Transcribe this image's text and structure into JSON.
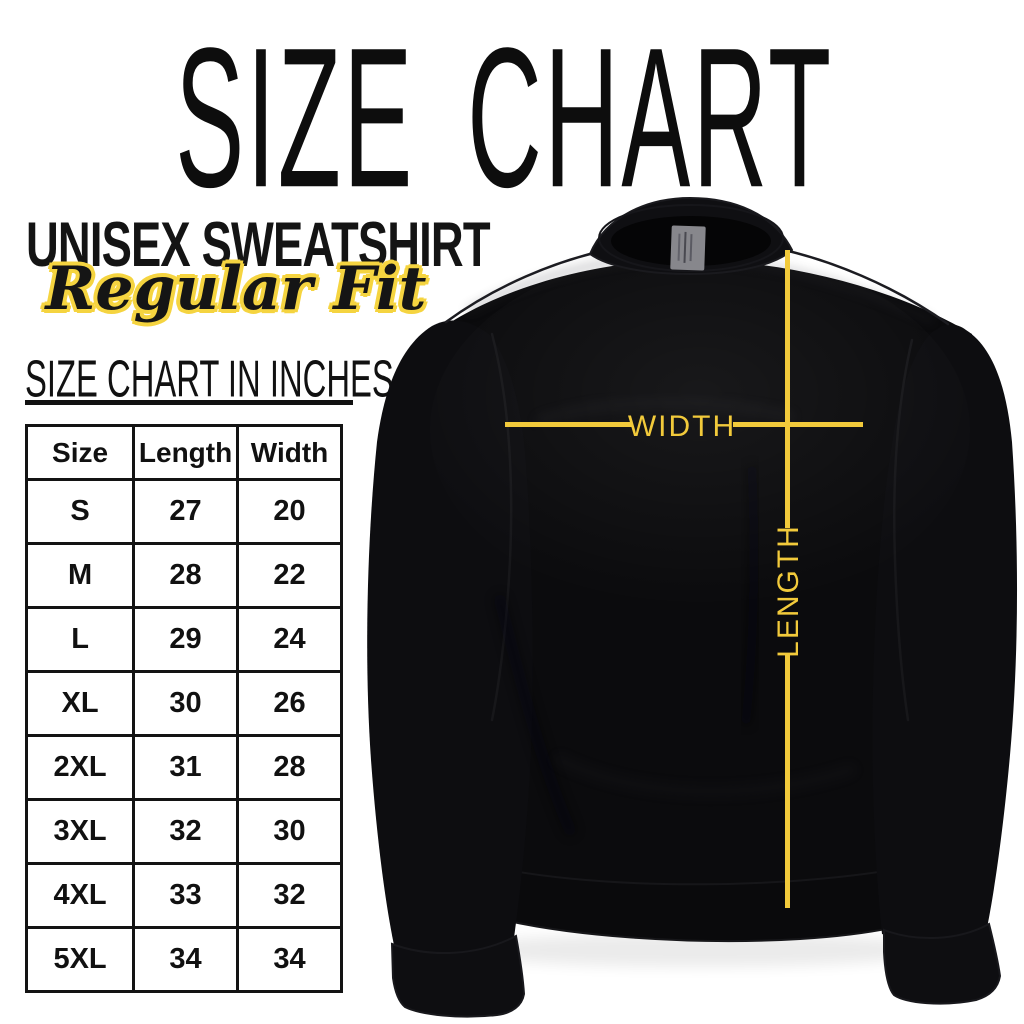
{
  "title": "SIZE CHART",
  "product": {
    "name": "UNISEX SWEATSHIRT",
    "fit": "Regular Fit"
  },
  "table_section": {
    "heading": "SIZE CHART IN INCHES",
    "columns": [
      "Size",
      "Length",
      "Width"
    ],
    "rows": [
      [
        "S",
        "27",
        "20"
      ],
      [
        "M",
        "28",
        "22"
      ],
      [
        "L",
        "29",
        "24"
      ],
      [
        "XL",
        "30",
        "26"
      ],
      [
        "2XL",
        "31",
        "28"
      ],
      [
        "3XL",
        "32",
        "30"
      ],
      [
        "4XL",
        "33",
        "32"
      ],
      [
        "5XL",
        "34",
        "34"
      ]
    ]
  },
  "diagram": {
    "width_label": "WIDTH",
    "length_label": "LENGTH"
  },
  "colors": {
    "accent_yellow": "#f2ca3b",
    "outline_yellow": "#f5d440",
    "text_black": "#111111",
    "sweatshirt_black": "#0b0b0d",
    "background": "#ffffff"
  }
}
